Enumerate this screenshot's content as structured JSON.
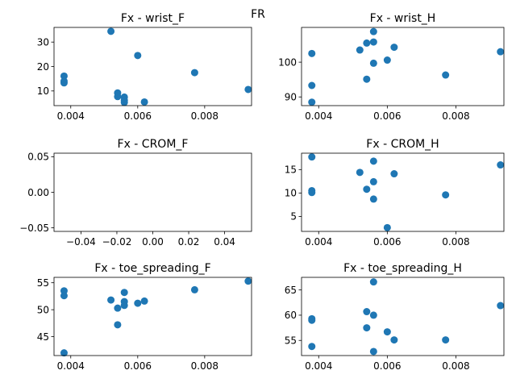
{
  "figure": {
    "suptitle": "FR"
  },
  "colors": {
    "marker": "#1f77b4",
    "axis": "#000000",
    "background": "#ffffff"
  },
  "chart_data": [
    {
      "type": "scatter",
      "title": "Fx - wrist_F",
      "xlim": [
        0.0035,
        0.0094
      ],
      "ylim": [
        4.0,
        36.0
      ],
      "xticks": [
        0.004,
        0.006,
        0.008
      ],
      "xticklabels": [
        "0.004",
        "0.006",
        "0.008"
      ],
      "yticks": [
        10,
        20,
        30
      ],
      "yticklabels": [
        "10",
        "20",
        "30"
      ],
      "grid": false,
      "x": [
        0.0038,
        0.0038,
        0.0038,
        0.0052,
        0.0054,
        0.0054,
        0.0056,
        0.0056,
        0.0056,
        0.006,
        0.0062,
        0.0077,
        0.0093
      ],
      "y": [
        16.1,
        13.3,
        14.0,
        34.4,
        9.2,
        7.7,
        7.5,
        6.2,
        5.3,
        24.5,
        5.5,
        17.5,
        10.6
      ]
    },
    {
      "type": "scatter",
      "title": "Fx - wrist_H",
      "xlim": [
        0.0035,
        0.0094
      ],
      "ylim": [
        87.5,
        110.0
      ],
      "xticks": [
        0.004,
        0.006,
        0.008
      ],
      "xticklabels": [
        "0.004",
        "0.006",
        "0.008"
      ],
      "yticks": [
        90,
        100
      ],
      "yticklabels": [
        "90",
        "100"
      ],
      "grid": false,
      "x": [
        0.0038,
        0.0038,
        0.0038,
        0.0052,
        0.0054,
        0.0054,
        0.0056,
        0.0056,
        0.0056,
        0.006,
        0.0062,
        0.0077,
        0.0093
      ],
      "y": [
        102.5,
        93.3,
        88.5,
        103.5,
        105.5,
        95.1,
        108.8,
        105.8,
        99.7,
        100.6,
        104.3,
        96.3,
        103.0
      ]
    },
    {
      "type": "scatter",
      "title": "Fx - CROM_F",
      "xlim": [
        -0.055,
        0.055
      ],
      "ylim": [
        -0.055,
        0.055
      ],
      "xticks": [
        -0.04,
        -0.02,
        0.0,
        0.02,
        0.04
      ],
      "xticklabels": [
        "−0.04",
        "−0.02",
        "0.00",
        "0.02",
        "0.04"
      ],
      "yticks": [
        -0.05,
        0.0,
        0.05
      ],
      "yticklabels": [
        "−0.05",
        "0.00",
        "0.05"
      ],
      "grid": false,
      "x": [],
      "y": []
    },
    {
      "type": "scatter",
      "title": "Fx - CROM_H",
      "xlim": [
        0.0035,
        0.0094
      ],
      "ylim": [
        1.8,
        18.5
      ],
      "xticks": [
        0.004,
        0.006,
        0.008
      ],
      "xticklabels": [
        "0.004",
        "0.006",
        "0.008"
      ],
      "yticks": [
        5,
        10,
        15
      ],
      "yticklabels": [
        "5",
        "10",
        "15"
      ],
      "grid": false,
      "x": [
        0.0038,
        0.0038,
        0.0038,
        0.0052,
        0.0054,
        0.0056,
        0.0056,
        0.0056,
        0.006,
        0.0062,
        0.0077,
        0.0093
      ],
      "y": [
        17.7,
        10.5,
        10.1,
        14.4,
        10.8,
        16.8,
        12.4,
        8.7,
        2.6,
        14.1,
        9.6,
        16.0
      ]
    },
    {
      "type": "scatter",
      "title": "Fx - toe_spreading_F",
      "xlim": [
        0.0035,
        0.0094
      ],
      "ylim": [
        41.5,
        56.0
      ],
      "xticks": [
        0.004,
        0.006,
        0.008
      ],
      "xticklabels": [
        "0.004",
        "0.006",
        "0.008"
      ],
      "yticks": [
        45,
        50,
        55
      ],
      "yticklabels": [
        "45",
        "50",
        "55"
      ],
      "grid": false,
      "x": [
        0.0038,
        0.0038,
        0.0038,
        0.0052,
        0.0054,
        0.0054,
        0.0056,
        0.0056,
        0.0056,
        0.006,
        0.0062,
        0.0077,
        0.0093
      ],
      "y": [
        53.5,
        52.6,
        42.0,
        51.8,
        50.3,
        47.2,
        53.2,
        51.5,
        50.8,
        51.2,
        51.6,
        53.7,
        55.3
      ]
    },
    {
      "type": "scatter",
      "title": "Fx - toe_spreading_H",
      "xlim": [
        0.0035,
        0.0094
      ],
      "ylim": [
        52.0,
        67.5
      ],
      "xticks": [
        0.004,
        0.006,
        0.008
      ],
      "xticklabels": [
        "0.004",
        "0.006",
        "0.008"
      ],
      "yticks": [
        55,
        60,
        65
      ],
      "yticklabels": [
        "55",
        "60",
        "65"
      ],
      "grid": false,
      "x": [
        0.0038,
        0.0038,
        0.0038,
        0.0054,
        0.0054,
        0.0056,
        0.0056,
        0.0056,
        0.006,
        0.0062,
        0.0077,
        0.0093
      ],
      "y": [
        59.3,
        59.0,
        53.8,
        60.7,
        57.5,
        66.6,
        60.0,
        52.8,
        56.7,
        55.1,
        55.1,
        61.9
      ]
    }
  ]
}
